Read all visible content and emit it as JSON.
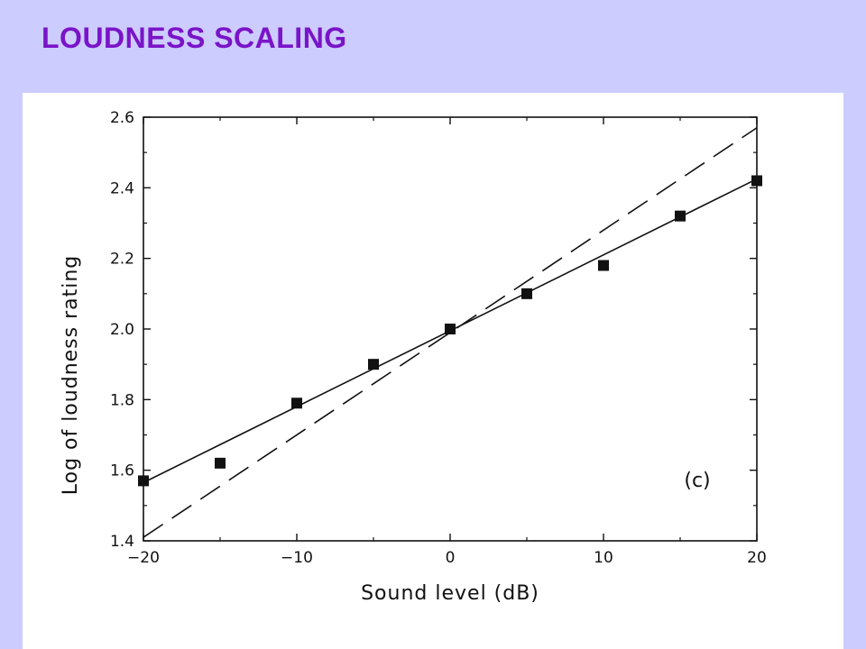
{
  "slide": {
    "title": "LOUDNESS SCALING"
  },
  "chart_data": {
    "type": "scatter",
    "xlabel": "Sound level (dB)",
    "ylabel": "Log of loudness rating",
    "panel_label": "(c)",
    "xlim": [
      -20,
      20
    ],
    "ylim": [
      1.4,
      2.6
    ],
    "x_ticks": [
      -20,
      -10,
      0,
      10,
      20
    ],
    "x_tick_labels": [
      "−20",
      "−10",
      "0",
      "10",
      "20"
    ],
    "y_ticks": [
      1.4,
      1.6,
      1.8,
      2.0,
      2.2,
      2.4,
      2.6
    ],
    "y_tick_labels": [
      "1.4",
      "1.6",
      "1.8",
      "2.0",
      "2.2",
      "2.4",
      "2.6"
    ],
    "grid": false,
    "series": [
      {
        "kind": "points",
        "x": [
          -20,
          -15,
          -10,
          -5,
          0,
          5,
          10,
          15,
          20
        ],
        "y": [
          1.57,
          1.62,
          1.79,
          1.9,
          2.0,
          2.1,
          2.18,
          2.32,
          2.42
        ]
      },
      {
        "kind": "fit-line-solid",
        "x": [
          -20,
          20
        ],
        "y": [
          1.565,
          2.425
        ]
      },
      {
        "kind": "reference-line-dashed",
        "x": [
          -20,
          20
        ],
        "y": [
          1.41,
          2.57
        ]
      }
    ]
  }
}
